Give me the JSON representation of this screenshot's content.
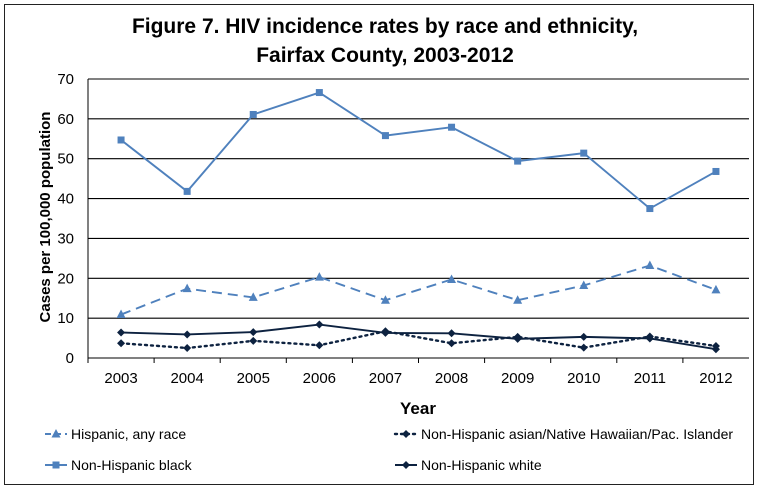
{
  "chart_data": {
    "type": "line",
    "title_line1": "Figure 7. HIV incidence rates by race and ethnicity,",
    "title_line2": "Fairfax County, 2003-2012",
    "xlabel": "Year",
    "ylabel": "Cases per 100,000 population",
    "ylim": [
      0,
      70
    ],
    "yticks": [
      0,
      10,
      20,
      30,
      40,
      50,
      60,
      70
    ],
    "grid": "horizontal",
    "legend_placement": "bottom",
    "categories": [
      "2003",
      "2004",
      "2005",
      "2006",
      "2007",
      "2008",
      "2009",
      "2010",
      "2011",
      "2012"
    ],
    "series": [
      {
        "name": "Hispanic, any race",
        "values": [
          10.9,
          17.4,
          15.2,
          20.3,
          14.5,
          19.7,
          14.5,
          18.2,
          23.2,
          17.1
        ],
        "color": "#4F81BD",
        "dash": "dashed",
        "marker": "triangle"
      },
      {
        "name": "Non-Hispanic asian/Native Hawaiian/Pac. Islander",
        "values": [
          3.7,
          2.5,
          4.3,
          3.2,
          6.7,
          3.7,
          5.3,
          2.6,
          5.4,
          3.0
        ],
        "color": "#0D2240",
        "dash": "dotted",
        "marker": "diamond"
      },
      {
        "name": "Non-Hispanic black",
        "values": [
          54.7,
          41.8,
          61.1,
          66.6,
          55.8,
          57.9,
          49.4,
          51.4,
          37.5,
          46.8
        ],
        "color": "#4F81BD",
        "dash": "solid",
        "marker": "square"
      },
      {
        "name": "Non-Hispanic white",
        "values": [
          6.4,
          5.9,
          6.5,
          8.4,
          6.3,
          6.2,
          4.8,
          5.3,
          4.9,
          2.2
        ],
        "color": "#0D2240",
        "dash": "solid",
        "marker": "diamond"
      }
    ]
  }
}
